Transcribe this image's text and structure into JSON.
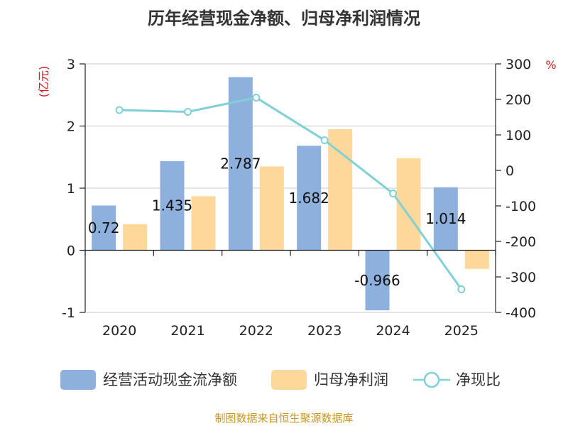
{
  "chart_data": {
    "type": "bar+line",
    "title": "历年经营现金净额、归母净利润情况",
    "categories": [
      "2020",
      "2021",
      "2022",
      "2023",
      "2024",
      "2025"
    ],
    "left_axis": {
      "unit": "(亿元)",
      "min": -1,
      "max": 3,
      "ticks": [
        -1,
        0,
        1,
        2,
        3
      ]
    },
    "right_axis": {
      "unit": "%",
      "min": -400,
      "max": 300,
      "ticks": [
        -400,
        -300,
        -200,
        -100,
        0,
        100,
        200,
        300
      ]
    },
    "series": [
      {
        "name": "经营活动现金流净额",
        "type": "bar",
        "axis": "left",
        "color": "#8eb0dd",
        "values": [
          0.72,
          1.435,
          2.787,
          1.682,
          -0.966,
          1.014
        ],
        "labels": [
          "0.72",
          "1.435",
          "2.787",
          "1.682",
          "-0.966",
          "1.014"
        ]
      },
      {
        "name": "归母净利润",
        "type": "bar",
        "axis": "left",
        "color": "#fed89b",
        "values": [
          0.42,
          0.87,
          1.35,
          1.95,
          1.48,
          -0.3
        ]
      },
      {
        "name": "净现比",
        "type": "line",
        "axis": "right",
        "color": "#7fd1d6",
        "values": [
          170,
          165,
          205,
          85,
          -65,
          -335
        ]
      }
    ],
    "source": "制图数据来自恒生聚源数据库"
  }
}
